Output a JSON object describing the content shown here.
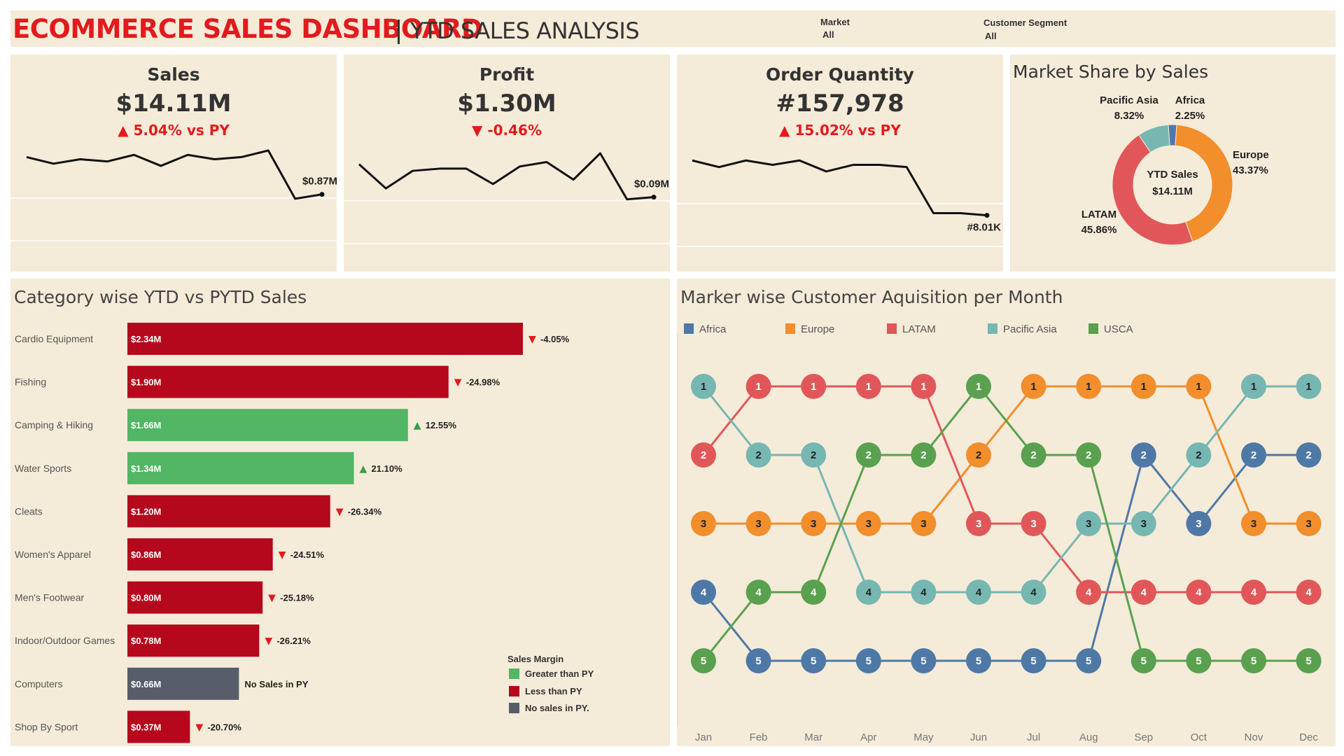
{
  "header": {
    "title": "ECOMMERCE SALES DASHBOARD",
    "subtitle": "YTD SALES ANALYSIS",
    "filters": [
      {
        "label": "Market",
        "value": "All"
      },
      {
        "label": "Customer Segment",
        "value": "All"
      }
    ]
  },
  "kpis": [
    {
      "title": "Sales",
      "value": "$14.11M",
      "change": "5.04% vs PY",
      "direction": "up",
      "end_label": "$0.87M",
      "trend": [
        0.97,
        0.94,
        0.96,
        0.95,
        0.98,
        0.93,
        0.98,
        0.96,
        0.97,
        1.0,
        0.78,
        0.8
      ]
    },
    {
      "title": "Profit",
      "value": "$1.30M",
      "change": "-0.46%",
      "direction": "down",
      "end_label": "$0.09M",
      "trend": [
        0.95,
        0.84,
        0.92,
        0.93,
        0.93,
        0.86,
        0.94,
        0.96,
        0.88,
        1.0,
        0.79,
        0.8
      ]
    },
    {
      "title": "Order Quantity",
      "value": "#157,978",
      "change": "15.02% vs PY",
      "direction": "up",
      "end_label": "#8.01K",
      "trend": [
        0.98,
        0.95,
        0.98,
        0.96,
        0.98,
        0.93,
        0.96,
        0.96,
        0.95,
        0.74,
        0.74,
        0.73
      ]
    }
  ],
  "colors": {
    "panel_bg": "#f5ebd9",
    "red_bar": "#b5081c",
    "green_bar": "#52b664",
    "grey_bar": "#575d6a",
    "title_red": "#e31a1c",
    "africa": "#4e79a7",
    "europe": "#f28e2b",
    "latam": "#e15759",
    "pacific_asia": "#76b7b2",
    "usca": "#59a14f"
  },
  "market_share": {
    "title": "Market Share by Sales",
    "center_label": "YTD Sales",
    "center_value": "$14.11M",
    "slices": [
      {
        "label": "Africa",
        "percent": "2.25%",
        "value": 2.25,
        "color": "#4e79a7"
      },
      {
        "label": "Europe",
        "percent": "43.37%",
        "value": 43.37,
        "color": "#f28e2b"
      },
      {
        "label": "LATAM",
        "percent": "45.86%",
        "value": 45.86,
        "color": "#e15759"
      },
      {
        "label": "Pacific Asia",
        "percent": "8.32%",
        "value": 8.32,
        "color": "#76b7b2"
      }
    ]
  },
  "category_chart": {
    "title": "Category wise YTD vs PYTD Sales",
    "max_value": 2.34,
    "rows": [
      {
        "category": "Cardio Equipment",
        "value": 2.34,
        "label": "$2.34M",
        "change": "-4.05%",
        "status": "less"
      },
      {
        "category": "Fishing",
        "value": 1.9,
        "label": "$1.90M",
        "change": "-24.98%",
        "status": "less"
      },
      {
        "category": "Camping & Hiking",
        "value": 1.66,
        "label": "$1.66M",
        "change": "12.55%",
        "status": "greater"
      },
      {
        "category": "Water Sports",
        "value": 1.34,
        "label": "$1.34M",
        "change": "21.10%",
        "status": "greater"
      },
      {
        "category": "Cleats",
        "value": 1.2,
        "label": "$1.20M",
        "change": "-26.34%",
        "status": "less"
      },
      {
        "category": "Women's Apparel",
        "value": 0.86,
        "label": "$0.86M",
        "change": "-24.51%",
        "status": "less"
      },
      {
        "category": "Men's Footwear",
        "value": 0.8,
        "label": "$0.80M",
        "change": "-25.18%",
        "status": "less"
      },
      {
        "category": "Indoor/Outdoor Games",
        "value": 0.78,
        "label": "$0.78M",
        "change": "-26.21%",
        "status": "less"
      },
      {
        "category": "Computers",
        "value": 0.66,
        "label": "$0.66M",
        "change": "No Sales in PY",
        "status": "none"
      },
      {
        "category": "Shop By Sport",
        "value": 0.37,
        "label": "$0.37M",
        "change": "-20.70%",
        "status": "less"
      }
    ],
    "legend": {
      "title": "Sales Margin",
      "items": [
        {
          "label": "Greater than PY",
          "color": "#52b664"
        },
        {
          "label": "Less than PY",
          "color": "#b5081c"
        },
        {
          "label": "No sales in PY.",
          "color": "#575d6a"
        }
      ]
    }
  },
  "chart_data": [
    {
      "type": "bar",
      "title": "Category wise YTD vs PYTD Sales",
      "categories": [
        "Cardio Equipment",
        "Fishing",
        "Camping & Hiking",
        "Water Sports",
        "Cleats",
        "Women's Apparel",
        "Men's Footwear",
        "Indoor/Outdoor Games",
        "Computers",
        "Shop By Sport"
      ],
      "values": [
        2.34,
        1.9,
        1.66,
        1.34,
        1.2,
        0.86,
        0.8,
        0.78,
        0.66,
        0.37
      ],
      "changes": [
        "-4.05%",
        "-24.98%",
        "12.55%",
        "21.10%",
        "-26.34%",
        "-24.51%",
        "-25.18%",
        "-26.21%",
        "No Sales in PY",
        "-20.70%"
      ]
    },
    {
      "type": "pie",
      "title": "Market Share by Sales",
      "categories": [
        "Africa",
        "Europe",
        "LATAM",
        "Pacific Asia"
      ],
      "values": [
        2.25,
        43.37,
        45.86,
        8.32
      ]
    },
    {
      "type": "line",
      "title": "Marker wise Customer Aquisition per Month",
      "x": [
        "Jan",
        "Feb",
        "Mar",
        "Apr",
        "May",
        "Jun",
        "Jul",
        "Aug",
        "Sep",
        "Oct",
        "Nov",
        "Dec"
      ],
      "ylim": [
        1,
        5
      ],
      "y_inverted": true,
      "legend": "top",
      "series": [
        {
          "name": "Africa",
          "color": "#4e79a7",
          "values": [
            4,
            5,
            5,
            5,
            5,
            5,
            5,
            5,
            2,
            3,
            2,
            2
          ]
        },
        {
          "name": "Europe",
          "color": "#f28e2b",
          "values": [
            3,
            3,
            3,
            3,
            3,
            2,
            1,
            1,
            1,
            1,
            3,
            3
          ]
        },
        {
          "name": "LATAM",
          "color": "#e15759",
          "values": [
            2,
            1,
            1,
            1,
            1,
            3,
            3,
            4,
            4,
            4,
            4,
            4
          ]
        },
        {
          "name": "Pacific Asia",
          "color": "#76b7b2",
          "values": [
            1,
            2,
            2,
            4,
            4,
            4,
            4,
            3,
            3,
            2,
            1,
            1
          ]
        },
        {
          "name": "USCA",
          "color": "#59a14f",
          "values": [
            5,
            4,
            4,
            2,
            2,
            1,
            2,
            2,
            5,
            5,
            5,
            5
          ]
        }
      ]
    }
  ]
}
